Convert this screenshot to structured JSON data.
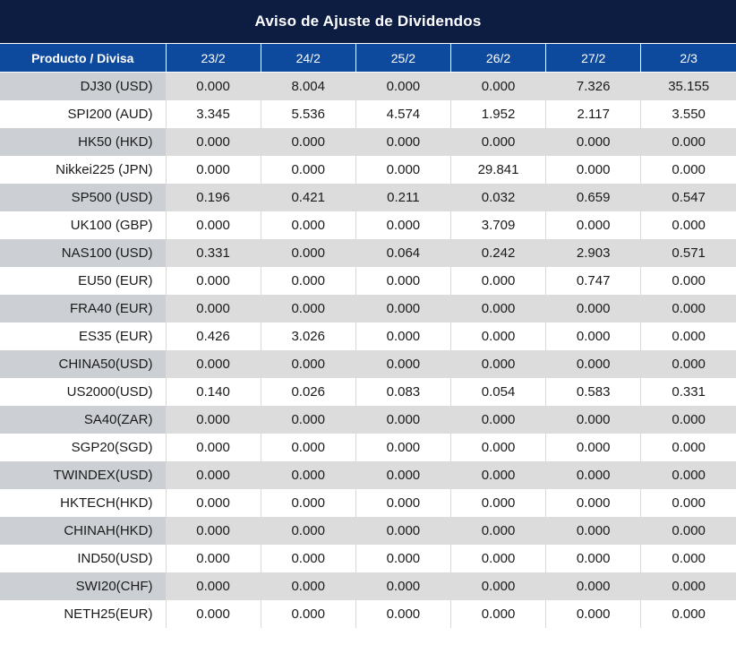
{
  "chart_data": {
    "type": "table",
    "title": "Aviso de Ajuste de Dividendos",
    "columns": [
      "Producto / Divisa",
      "23/2",
      "24/2",
      "25/2",
      "26/2",
      "27/2",
      "2/3"
    ],
    "rows": [
      {
        "product": "DJ30 (USD)",
        "values": [
          "0.000",
          "8.004",
          "0.000",
          "0.000",
          "7.326",
          "35.155"
        ]
      },
      {
        "product": "SPI200 (AUD)",
        "values": [
          "3.345",
          "5.536",
          "4.574",
          "1.952",
          "2.117",
          "3.550"
        ]
      },
      {
        "product": "HK50 (HKD)",
        "values": [
          "0.000",
          "0.000",
          "0.000",
          "0.000",
          "0.000",
          "0.000"
        ]
      },
      {
        "product": "Nikkei225 (JPN)",
        "values": [
          "0.000",
          "0.000",
          "0.000",
          "29.841",
          "0.000",
          "0.000"
        ]
      },
      {
        "product": "SP500 (USD)",
        "values": [
          "0.196",
          "0.421",
          "0.211",
          "0.032",
          "0.659",
          "0.547"
        ]
      },
      {
        "product": "UK100 (GBP)",
        "values": [
          "0.000",
          "0.000",
          "0.000",
          "3.709",
          "0.000",
          "0.000"
        ]
      },
      {
        "product": "NAS100 (USD)",
        "values": [
          "0.331",
          "0.000",
          "0.064",
          "0.242",
          "2.903",
          "0.571"
        ]
      },
      {
        "product": "EU50 (EUR)",
        "values": [
          "0.000",
          "0.000",
          "0.000",
          "0.000",
          "0.747",
          "0.000"
        ]
      },
      {
        "product": "FRA40 (EUR)",
        "values": [
          "0.000",
          "0.000",
          "0.000",
          "0.000",
          "0.000",
          "0.000"
        ]
      },
      {
        "product": "ES35 (EUR)",
        "values": [
          "0.426",
          "3.026",
          "0.000",
          "0.000",
          "0.000",
          "0.000"
        ]
      },
      {
        "product": "CHINA50(USD)",
        "values": [
          "0.000",
          "0.000",
          "0.000",
          "0.000",
          "0.000",
          "0.000"
        ]
      },
      {
        "product": "US2000(USD)",
        "values": [
          "0.140",
          "0.026",
          "0.083",
          "0.054",
          "0.583",
          "0.331"
        ]
      },
      {
        "product": "SA40(ZAR)",
        "values": [
          "0.000",
          "0.000",
          "0.000",
          "0.000",
          "0.000",
          "0.000"
        ]
      },
      {
        "product": "SGP20(SGD)",
        "values": [
          "0.000",
          "0.000",
          "0.000",
          "0.000",
          "0.000",
          "0.000"
        ]
      },
      {
        "product": "TWINDEX(USD)",
        "values": [
          "0.000",
          "0.000",
          "0.000",
          "0.000",
          "0.000",
          "0.000"
        ]
      },
      {
        "product": "HKTECH(HKD)",
        "values": [
          "0.000",
          "0.000",
          "0.000",
          "0.000",
          "0.000",
          "0.000"
        ]
      },
      {
        "product": "CHINAH(HKD)",
        "values": [
          "0.000",
          "0.000",
          "0.000",
          "0.000",
          "0.000",
          "0.000"
        ]
      },
      {
        "product": "IND50(USD)",
        "values": [
          "0.000",
          "0.000",
          "0.000",
          "0.000",
          "0.000",
          "0.000"
        ]
      },
      {
        "product": "SWI20(CHF)",
        "values": [
          "0.000",
          "0.000",
          "0.000",
          "0.000",
          "0.000",
          "0.000"
        ]
      },
      {
        "product": "NETH25(EUR)",
        "values": [
          "0.000",
          "0.000",
          "0.000",
          "0.000",
          "0.000",
          "0.000"
        ]
      }
    ],
    "layout_hints": {
      "zebra_striping": true,
      "nonzero_values_highlighted_red": true,
      "product_column_right_aligned": true,
      "value_columns_centered": true
    }
  },
  "colors": {
    "title_bg": "#0d1d42",
    "header_bg": "#0d4a9e",
    "row_alt_bg": "#dcdcdc",
    "row_alt_product_bg": "#ccd0d4",
    "nonzero_value": "#f40e0e",
    "zero_value": "#1a1a1a",
    "header_text": "#ffffff"
  }
}
